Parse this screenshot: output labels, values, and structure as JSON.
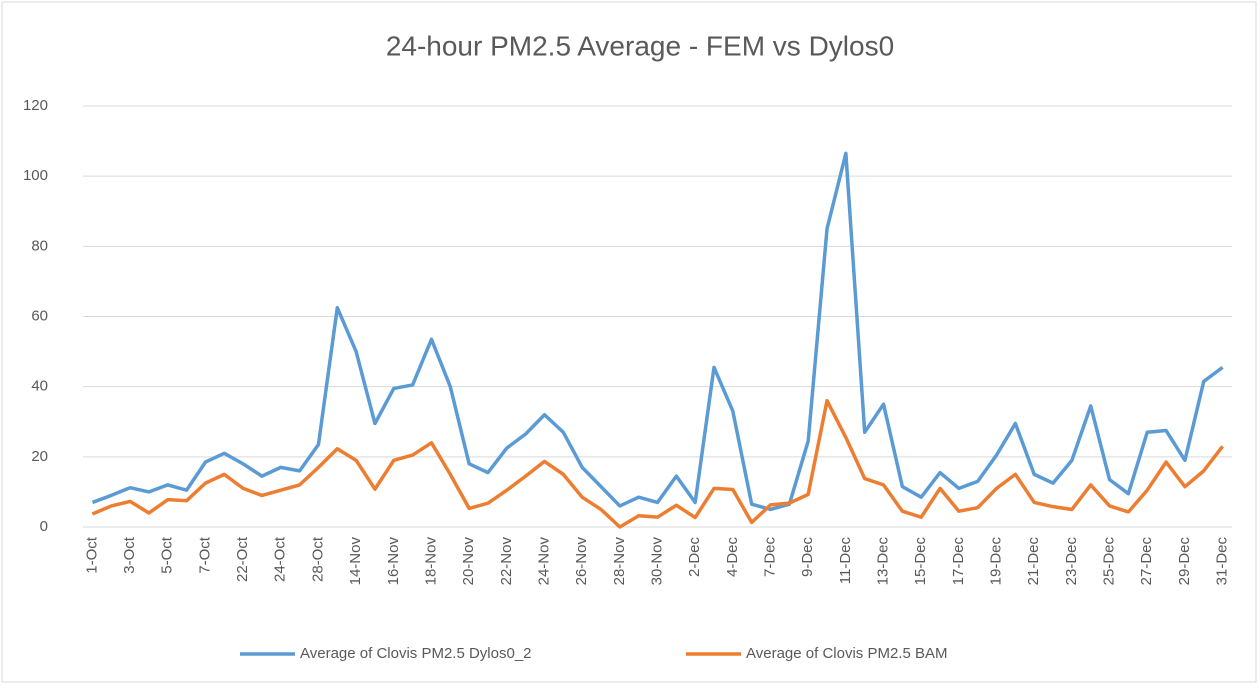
{
  "chart_data": {
    "type": "line",
    "title": "24-hour PM2.5 Average - FEM vs Dylos0",
    "categories": [
      "1-Oct",
      null,
      "3-Oct",
      null,
      "5-Oct",
      null,
      "7-Oct",
      null,
      "22-Oct",
      null,
      "24-Oct",
      null,
      "28-Oct",
      null,
      "14-Nov",
      null,
      "16-Nov",
      null,
      "18-Nov",
      null,
      "20-Nov",
      null,
      "22-Nov",
      null,
      "24-Nov",
      null,
      "26-Nov",
      null,
      "28-Nov",
      null,
      "30-Nov",
      null,
      "2-Dec",
      null,
      "4-Dec",
      null,
      "7-Dec",
      null,
      "9-Dec",
      null,
      "11-Dec",
      null,
      "13-Dec",
      null,
      "15-Dec",
      null,
      "17-Dec",
      null,
      "19-Dec",
      null,
      "21-Dec",
      null,
      "23-Dec",
      null,
      "25-Dec",
      null,
      "27-Dec",
      null,
      "29-Dec",
      null,
      "31-Dec"
    ],
    "series": [
      {
        "name": "Average of Clovis PM2.5 Dylos0_2",
        "color": "#5b9bd5",
        "values": [
          7,
          9,
          11.2,
          10,
          12,
          10.5,
          18.5,
          21,
          18,
          14.5,
          17,
          16,
          23.5,
          62.5,
          50,
          29.5,
          39.5,
          40.5,
          53.5,
          40,
          18,
          15.5,
          22.5,
          26.5,
          32,
          27,
          17,
          11.5,
          6,
          8.5,
          7,
          14.5,
          7,
          45.5,
          33,
          6.5,
          5,
          6.5,
          24.5,
          85,
          106.5,
          27,
          35,
          11.5,
          8.5,
          15.5,
          11,
          13,
          20.5,
          29.5,
          15,
          12.5,
          19,
          34.5,
          13.5,
          9.5,
          27,
          27.5,
          19,
          41.5,
          45.5
        ]
      },
      {
        "name": "Average of Clovis PM2.5 BAM",
        "color": "#ed7d31",
        "values": [
          3.7,
          6,
          7.3,
          4,
          7.8,
          7.5,
          12.5,
          15,
          11,
          9,
          10.5,
          12,
          17,
          22.3,
          19,
          10.8,
          19,
          20.5,
          24,
          15,
          5.3,
          6.8,
          10.5,
          14.5,
          18.7,
          15,
          8.5,
          5,
          0,
          3.2,
          2.8,
          6.2,
          2.7,
          11,
          10.7,
          1.3,
          6.3,
          6.8,
          9.3,
          36,
          25.5,
          13.8,
          12,
          4.5,
          2.8,
          11,
          4.5,
          5.5,
          11,
          15,
          7,
          5.8,
          5,
          12,
          6,
          4.3,
          10.5,
          18.5,
          11.5,
          16,
          23
        ]
      }
    ],
    "ylim": [
      0,
      120
    ],
    "yticks": [
      0,
      20,
      40,
      60,
      80,
      100,
      120
    ],
    "grid": true,
    "legend": "bottom"
  }
}
